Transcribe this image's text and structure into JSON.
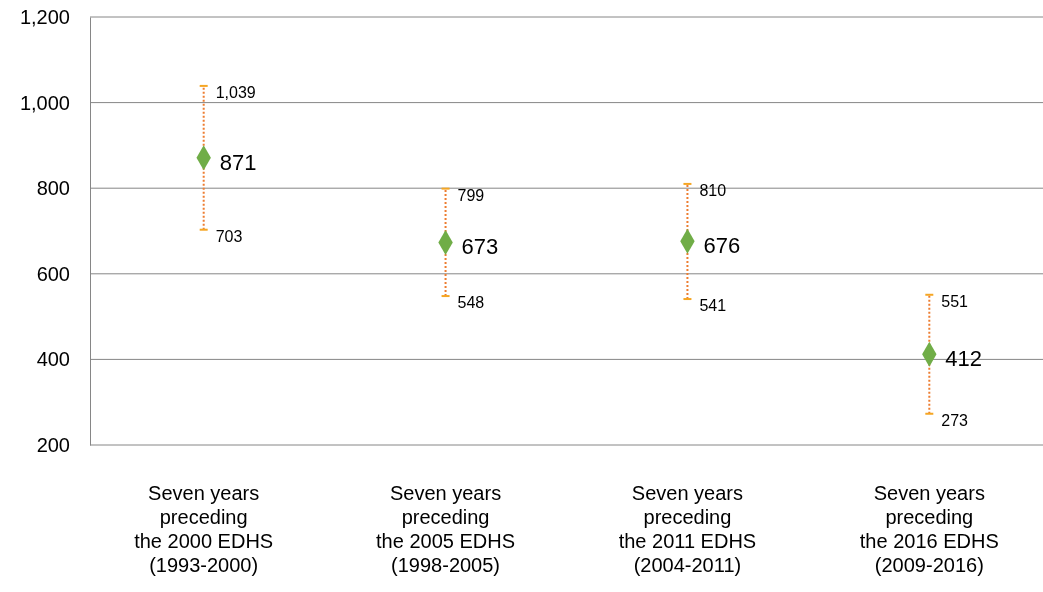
{
  "chart_data": {
    "type": "scatter",
    "categories": [
      "Seven years\npreceding\nthe 2000 EDHS\n(1993-2000)",
      "Seven years\npreceding\nthe 2005 EDHS\n(1998-2005)",
      "Seven years\npreceding\nthe 2011 EDHS\n(2004-2011)",
      "Seven years\npreceding\nthe 2016 EDHS\n(2009-2016)"
    ],
    "series": [
      {
        "color": "#70ad47",
        "values": [
          871,
          673,
          676,
          412
        ],
        "errors": [
          [
            703,
            1039
          ],
          [
            548,
            799
          ],
          [
            541,
            810
          ],
          [
            273,
            551
          ]
        ]
      }
    ],
    "ylim": [
      200,
      1200
    ],
    "yticks": [
      200,
      400,
      600,
      800,
      {
        "value": 1000,
        "label": "1,000"
      },
      {
        "value": 1200,
        "label": "1,200"
      }
    ],
    "annotations": [
      {
        "text": "1,039",
        "x": "Seven years\npreceding\nthe 2000 EDHS\n(1993-2000)",
        "y": 1039
      },
      {
        "text": "703",
        "x": "Seven years\npreceding\nthe 2000 EDHS\n(1993-2000)",
        "y": 703
      },
      {
        "text": "799",
        "x": "Seven years\npreceding\nthe 2005 EDHS\n(1998-2005)",
        "y": 799
      },
      {
        "text": "548",
        "x": "Seven years\npreceding\nthe 2005 EDHS\n(1998-2005)",
        "y": 548
      },
      {
        "text": "810",
        "x": "Seven years\npreceding\nthe 2011 EDHS\n(2004-2011)",
        "y": 810
      },
      {
        "text": "541",
        "x": "Seven years\npreceding\nthe 2011 EDHS\n(2004-2011)",
        "y": 541
      },
      {
        "text": "551",
        "x": "Seven years\npreceding\nthe 2016 EDHS\n(2009-2016)",
        "y": 551
      },
      {
        "text": "273",
        "x": "Seven years\npreceding\nthe 2016 EDHS\n(2009-2016)",
        "y": 273
      }
    ],
    "grid": "y",
    "marker": "diamond",
    "data_labels": true
  }
}
